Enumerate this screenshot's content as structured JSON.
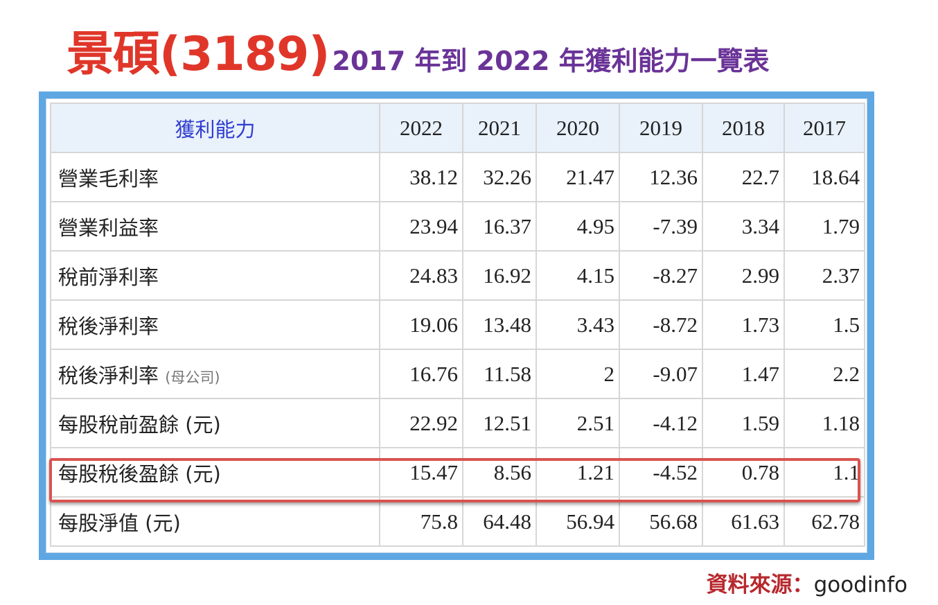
{
  "title": {
    "main": "景碩(3189)",
    "sub": "2017 年到 2022 年獲利能力一覽表"
  },
  "table": {
    "header_label": "獲利能力",
    "years": [
      "2022",
      "2021",
      "2020",
      "2019",
      "2018",
      "2017"
    ],
    "rows": [
      {
        "label": "營業毛利率",
        "note": "",
        "values": [
          "38.12",
          "32.26",
          "21.47",
          "12.36",
          "22.7",
          "18.64"
        ]
      },
      {
        "label": "營業利益率",
        "note": "",
        "values": [
          "23.94",
          "16.37",
          "4.95",
          "-7.39",
          "3.34",
          "1.79"
        ]
      },
      {
        "label": "稅前淨利率",
        "note": "",
        "values": [
          "24.83",
          "16.92",
          "4.15",
          "-8.27",
          "2.99",
          "2.37"
        ]
      },
      {
        "label": "稅後淨利率",
        "note": "",
        "values": [
          "19.06",
          "13.48",
          "3.43",
          "-8.72",
          "1.73",
          "1.5"
        ]
      },
      {
        "label": "稅後淨利率",
        "note": "(母公司)",
        "values": [
          "16.76",
          "11.58",
          "2",
          "-9.07",
          "1.47",
          "2.2"
        ]
      },
      {
        "label": "每股稅前盈餘 (元)",
        "note": "",
        "values": [
          "22.92",
          "12.51",
          "2.51",
          "-4.12",
          "1.59",
          "1.18"
        ]
      },
      {
        "label": "每股稅後盈餘 (元)",
        "note": "",
        "values": [
          "15.47",
          "8.56",
          "1.21",
          "-4.52",
          "0.78",
          "1.1"
        ]
      },
      {
        "label": "每股淨值 (元)",
        "note": "",
        "values": [
          "75.8",
          "64.48",
          "56.94",
          "56.68",
          "61.63",
          "62.78"
        ]
      }
    ],
    "highlighted_row": "每股稅後盈餘 (元)",
    "colors": {
      "negative": "#e0362a",
      "highlight_border": "#d9534f",
      "frame": "#5ea7e3",
      "header_bg": "#e9f1fa",
      "header_label": "#2f3dd1"
    }
  },
  "source": {
    "label": "資料來源：",
    "value": "goodinfo"
  }
}
